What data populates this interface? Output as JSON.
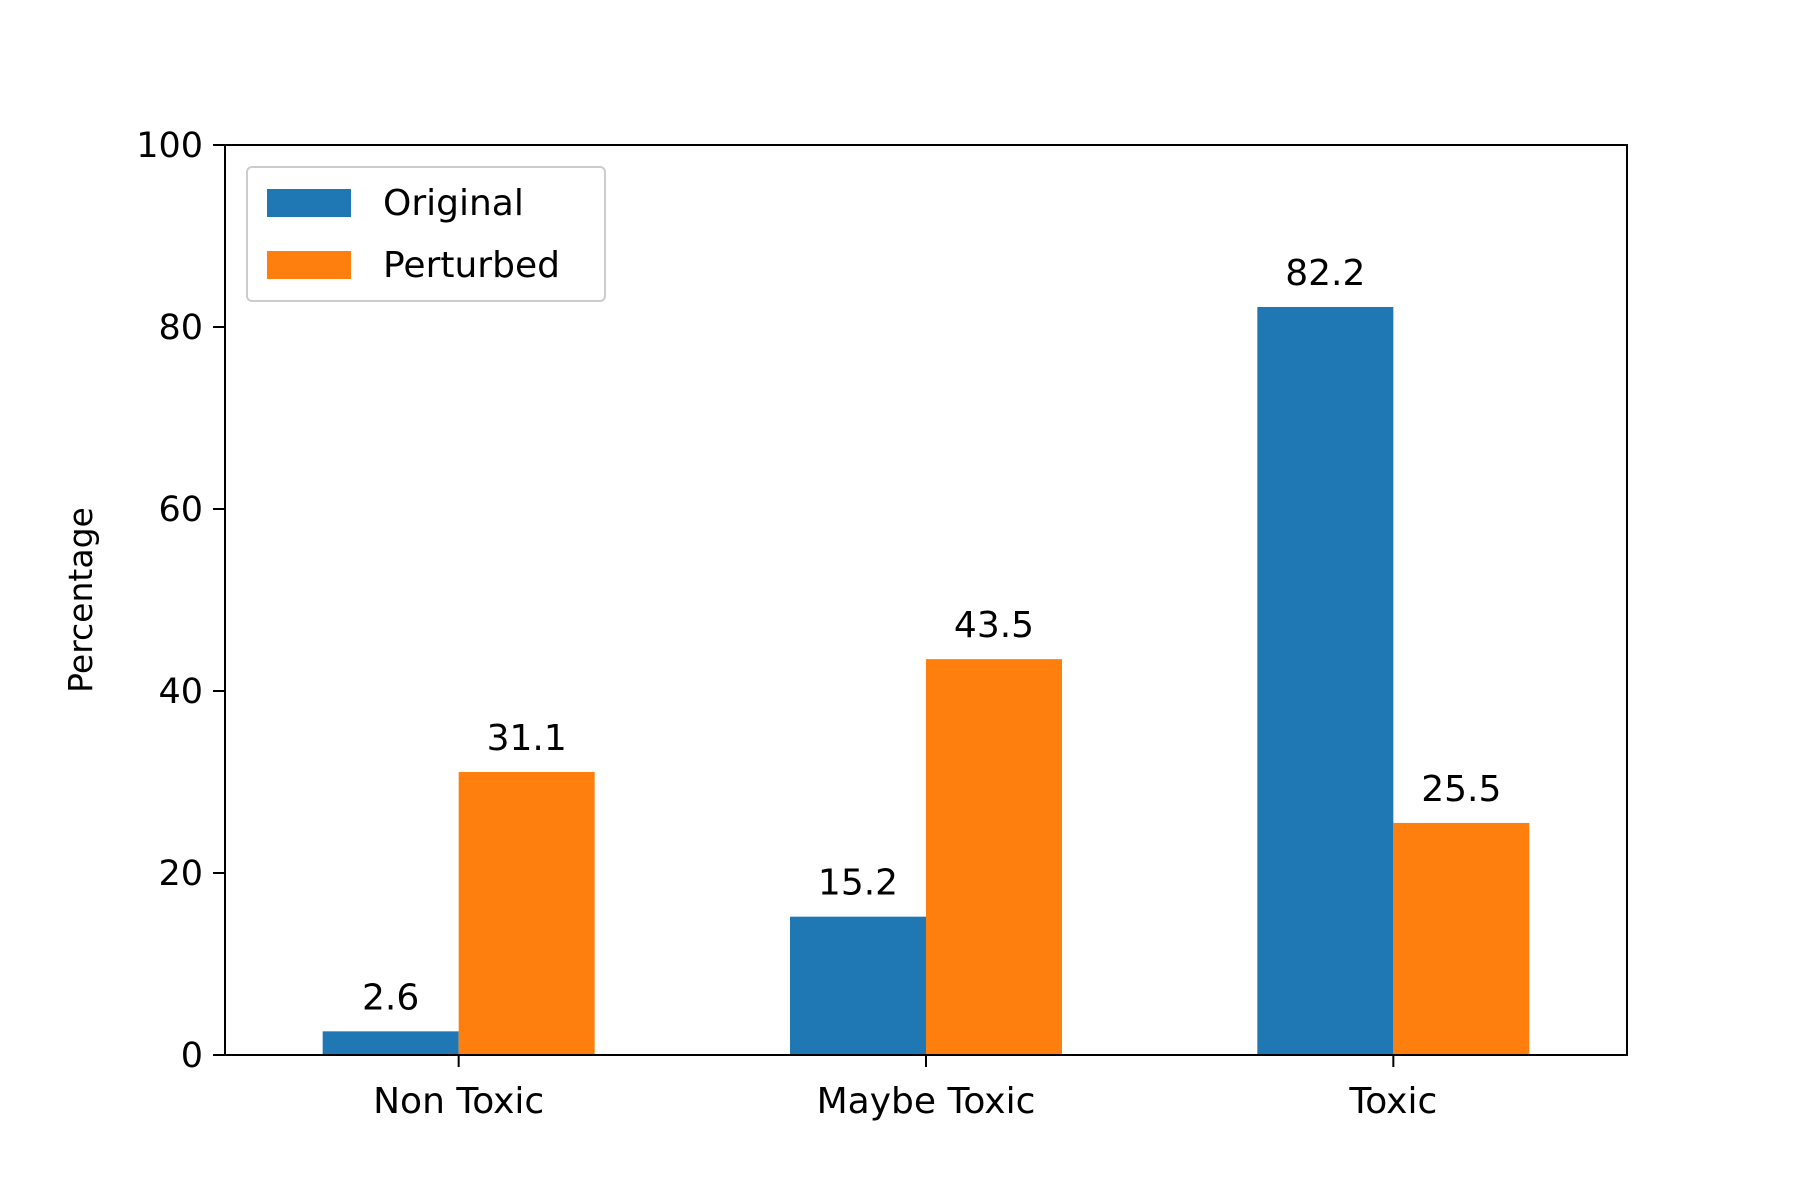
{
  "chart_data": {
    "type": "bar",
    "title": "",
    "xlabel": "",
    "ylabel": "Percentage",
    "categories": [
      "Non Toxic",
      "Maybe Toxic",
      "Toxic"
    ],
    "series": [
      {
        "name": "Original",
        "color": "#1f77b4",
        "values": [
          2.6,
          15.2,
          82.2
        ]
      },
      {
        "name": "Perturbed",
        "color": "#ff7f0e",
        "values": [
          31.1,
          43.5,
          25.5
        ]
      }
    ],
    "data_labels": [
      [
        "2.6",
        "15.2",
        "82.2"
      ],
      [
        "31.1",
        "43.5",
        "25.5"
      ]
    ],
    "ylim": [
      0,
      100
    ],
    "yticks": [
      0,
      20,
      40,
      60,
      80,
      100
    ],
    "ytick_labels": [
      "0",
      "20",
      "40",
      "60",
      "80",
      "100"
    ],
    "grid": false,
    "legend_position": "top-left"
  }
}
